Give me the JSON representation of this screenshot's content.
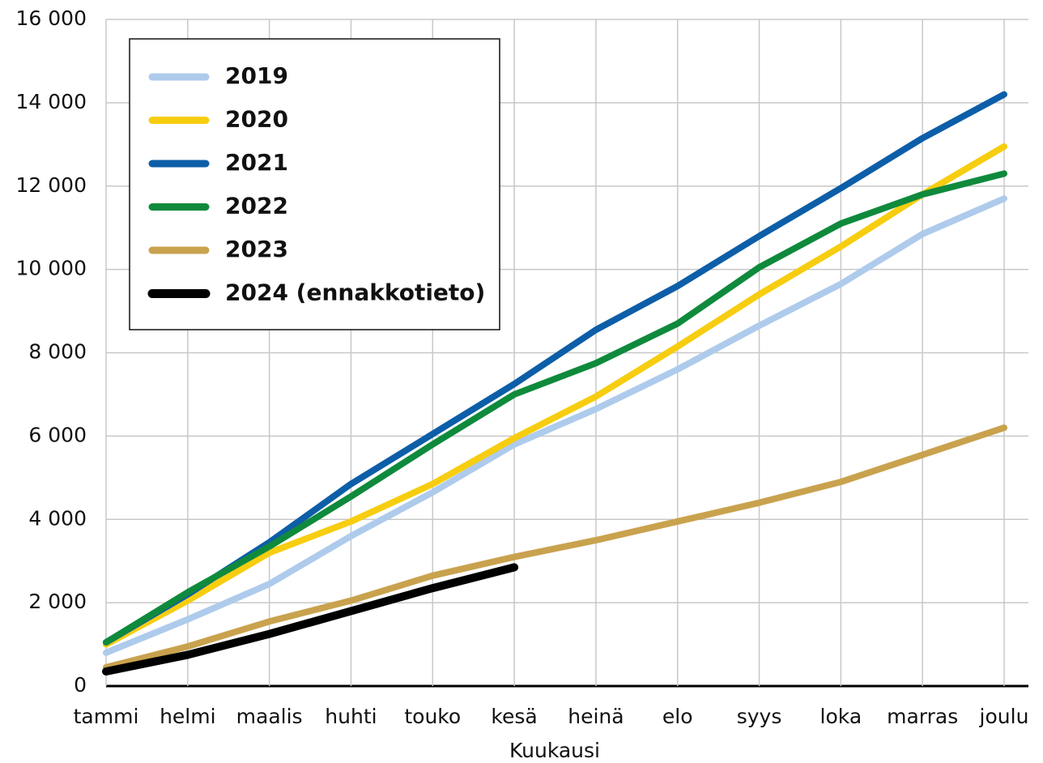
{
  "chart_data": {
    "type": "line",
    "x_label": "Kuukausi",
    "categories": [
      "tammi",
      "helmi",
      "maalis",
      "huhti",
      "touko",
      "kesä",
      "heinä",
      "elo",
      "syys",
      "loka",
      "marras",
      "joulu"
    ],
    "series": [
      {
        "name": "2019",
        "color": "#aecbec",
        "values": [
          800,
          1600,
          2450,
          3600,
          4650,
          5800,
          6650,
          7600,
          8650,
          9650,
          10850,
          11700
        ]
      },
      {
        "name": "2020",
        "color": "#f7cd10",
        "values": [
          1000,
          2050,
          3200,
          3950,
          4850,
          5950,
          6950,
          8150,
          9400,
          10550,
          11800,
          12950
        ]
      },
      {
        "name": "2021",
        "color": "#0d5ea8",
        "values": [
          1050,
          2200,
          3450,
          4850,
          6050,
          7250,
          8550,
          9600,
          10800,
          11950,
          13150,
          14200
        ]
      },
      {
        "name": "2022",
        "color": "#0f8a3c",
        "values": [
          1050,
          2250,
          3350,
          4550,
          5800,
          7000,
          7750,
          8700,
          10050,
          11100,
          11800,
          12300
        ]
      },
      {
        "name": "2023",
        "color": "#c9a24e",
        "values": [
          450,
          950,
          1550,
          2050,
          2650,
          3100,
          3500,
          3950,
          4400,
          4900,
          5550,
          6200
        ]
      },
      {
        "name": "2024 (ennakkotieto)",
        "color": "#000000",
        "values": [
          350,
          750,
          1250,
          1800,
          2350,
          2850,
          null,
          null,
          null,
          null,
          null,
          null
        ]
      }
    ],
    "ylim": [
      0,
      16000
    ],
    "yticks": [
      0,
      {
        "value": 2000,
        "label": "2 000"
      },
      {
        "value": 4000,
        "label": "4 000"
      },
      {
        "value": 6000,
        "label": "6 000"
      },
      {
        "value": 8000,
        "label": "8 000"
      },
      {
        "value": 10000,
        "label": "10 000"
      },
      {
        "value": 12000,
        "label": "12 000"
      },
      {
        "value": 14000,
        "label": "14 000"
      },
      {
        "value": 16000,
        "label": "16 000"
      }
    ],
    "grid": true,
    "legend": "upper left"
  }
}
